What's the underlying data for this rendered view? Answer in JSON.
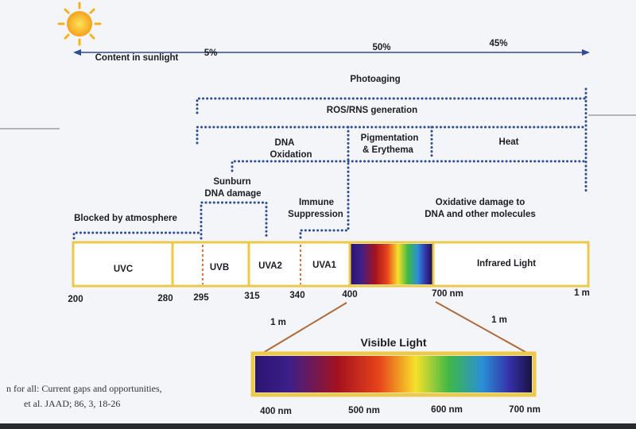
{
  "sunlight": {
    "label": "Content in sunlight",
    "shares": [
      "5%",
      "50%",
      "45%"
    ]
  },
  "effects": {
    "photoaging": "Photoaging",
    "ros": "ROS/RNS generation",
    "dna_oxidation": [
      "DNA",
      "Oxidation"
    ],
    "pigmentation": [
      "Pigmentation",
      "& Erythema"
    ],
    "heat": "Heat",
    "sunburn": [
      "Sunburn",
      "DNA damage"
    ],
    "immune": [
      "Immune",
      "Suppression"
    ],
    "oxidative": [
      "Oxidative damage to",
      "DNA and other molecules"
    ],
    "blocked": "Blocked by atmosphere"
  },
  "spectrum": {
    "bands": [
      "UVC",
      "UVB",
      "UVA2",
      "UVA1",
      "Infrared Light"
    ],
    "wavelengths": [
      "200",
      "280",
      "295",
      "315",
      "340",
      "400",
      "700 nm",
      "1 m"
    ]
  },
  "zoom": {
    "left": "1 m",
    "right": "1 m",
    "title": "Visible Light",
    "wavelengths": [
      "400 nm",
      "500 nm",
      "600 nm",
      "700 nm"
    ]
  },
  "citation": [
    "n for all: Current gaps and opportunities,",
    "et al. JAAD; 86, 3, 18-26"
  ]
}
